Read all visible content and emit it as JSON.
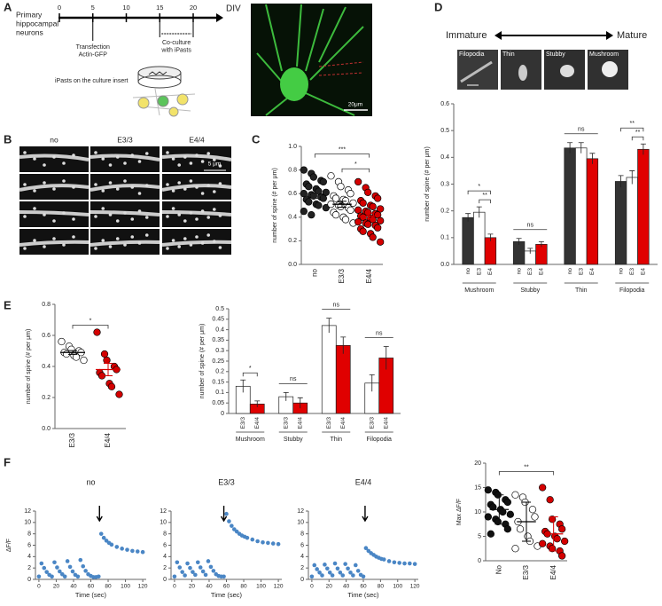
{
  "panel_labels": [
    "A",
    "B",
    "C",
    "D",
    "E",
    "F"
  ],
  "timeline": {
    "title_lines": [
      "Primary",
      "hippocampal",
      "neurons"
    ],
    "xlim": [
      0,
      20
    ],
    "xticks": [
      0,
      5,
      10,
      15,
      20
    ],
    "unit": "DIV",
    "transfection": {
      "x": 5,
      "lines": [
        "Transfection",
        "Actin-GFP"
      ]
    },
    "coculture": {
      "x": [
        15,
        20
      ],
      "lines": [
        "Co-culture",
        "with iPasts"
      ]
    },
    "insert_label": "iPasts on the culture insert"
  },
  "image_a": {
    "scale": "20μm"
  },
  "image_b": {
    "columns": [
      "no",
      "E3/3",
      "E4/4"
    ],
    "scale": "5 μm"
  },
  "maturity": {
    "start": "Immature",
    "end": "Mature",
    "thumbnails": [
      "Filopodia",
      "Thin",
      "Stubby",
      "Mushroom"
    ]
  },
  "chart_data": [
    {
      "type": "strip",
      "categories": [
        "no",
        "E3/3",
        "E4/4"
      ],
      "colors": [
        "#222222",
        "#ffffff",
        "#d40000"
      ],
      "values": [
        [
          0.8,
          0.77,
          0.74,
          0.71,
          0.7,
          0.68,
          0.66,
          0.64,
          0.62,
          0.61,
          0.6,
          0.59,
          0.58,
          0.57,
          0.56,
          0.55,
          0.53,
          0.51,
          0.5,
          0.48,
          0.45,
          0.42
        ],
        [
          0.75,
          0.7,
          0.66,
          0.63,
          0.6,
          0.58,
          0.56,
          0.55,
          0.54,
          0.52,
          0.51,
          0.5,
          0.49,
          0.48,
          0.46,
          0.44,
          0.42,
          0.4,
          0.38,
          0.35
        ],
        [
          0.7,
          0.65,
          0.61,
          0.58,
          0.56,
          0.54,
          0.52,
          0.5,
          0.49,
          0.47,
          0.46,
          0.45,
          0.44,
          0.43,
          0.42,
          0.41,
          0.4,
          0.39,
          0.38,
          0.37,
          0.36,
          0.35,
          0.34,
          0.33,
          0.31,
          0.3,
          0.28,
          0.26,
          0.23,
          0.19
        ]
      ],
      "means": [
        0.58,
        0.51,
        0.41
      ],
      "errors": [
        0.02,
        0.025,
        0.025
      ],
      "ylabel": "number of spine (# per μm)",
      "ylim": [
        0,
        1.0
      ],
      "yticks": [
        {
          "value": 0,
          "label": "0.0"
        },
        {
          "value": 0.2,
          "label": "0.2"
        },
        {
          "value": 0.4,
          "label": "0.4"
        },
        {
          "value": 0.6,
          "label": "0.6"
        },
        {
          "value": 0.8,
          "label": "0.8"
        },
        {
          "value": 1.0,
          "label": "1.0"
        }
      ],
      "annotations": [
        {
          "text": "***",
          "between": [
            "no",
            "E4/4"
          ]
        },
        {
          "text": "*",
          "between": [
            "E3/3",
            "E4/4"
          ]
        }
      ]
    },
    {
      "type": "bar",
      "categories": [
        "Mushroom",
        "Stubby",
        "Thin",
        "Filopodia"
      ],
      "series": [
        {
          "name": "no",
          "color": "#333333",
          "values": [
            0.175,
            0.085,
            0.435,
            0.31
          ],
          "errors": [
            0.015,
            0.012,
            0.02,
            0.022
          ]
        },
        {
          "name": "E3",
          "color": "#ffffff",
          "values": [
            0.195,
            0.05,
            0.435,
            0.325
          ],
          "errors": [
            0.02,
            0.01,
            0.02,
            0.025
          ]
        },
        {
          "name": "E4",
          "color": "#e00000",
          "values": [
            0.1,
            0.075,
            0.395,
            0.43
          ],
          "errors": [
            0.013,
            0.01,
            0.02,
            0.02
          ]
        }
      ],
      "ylabel": "number of spine (# per μm)",
      "ylim": [
        0,
        0.6
      ],
      "yticks": [
        {
          "value": 0,
          "label": "0.0"
        },
        {
          "value": 0.1,
          "label": "0.1"
        },
        {
          "value": 0.2,
          "label": "0.2"
        },
        {
          "value": 0.3,
          "label": "0.3"
        },
        {
          "value": 0.4,
          "label": "0.4"
        },
        {
          "value": 0.5,
          "label": "0.5"
        },
        {
          "value": 0.6,
          "label": "0.6"
        }
      ],
      "annotations": [
        {
          "text": "*",
          "category": "Mushroom",
          "between": [
            "no",
            "E4"
          ]
        },
        {
          "text": "**",
          "category": "Mushroom",
          "between": [
            "E3",
            "E4"
          ]
        },
        {
          "text": "ns",
          "category": "Stubby"
        },
        {
          "text": "ns",
          "category": "Thin"
        },
        {
          "text": "**",
          "category": "Filopodia",
          "between": [
            "no",
            "E4"
          ]
        },
        {
          "text": "**",
          "category": "Filopodia",
          "between": [
            "E3",
            "E4"
          ]
        }
      ]
    },
    {
      "type": "strip",
      "categories": [
        "E3/3",
        "E4/4"
      ],
      "colors": [
        "#ffffff",
        "#d40000"
      ],
      "values": [
        [
          0.56,
          0.53,
          0.51,
          0.5,
          0.49,
          0.49,
          0.48,
          0.47,
          0.46,
          0.44
        ],
        [
          0.62,
          0.48,
          0.44,
          0.4,
          0.38,
          0.36,
          0.34,
          0.29,
          0.27,
          0.22
        ]
      ],
      "means": [
        0.49,
        0.38
      ],
      "errors": [
        0.012,
        0.04
      ],
      "ylabel": "number of spine (# per μm)",
      "ylim": [
        0,
        0.8
      ],
      "yticks": [
        {
          "value": 0,
          "label": "0.0"
        },
        {
          "value": 0.2,
          "label": "0.2"
        },
        {
          "value": 0.4,
          "label": "0.4"
        },
        {
          "value": 0.6,
          "label": "0.6"
        },
        {
          "value": 0.8,
          "label": "0.8"
        }
      ],
      "annotations": [
        {
          "text": "*",
          "between": [
            "E3/3",
            "E4/4"
          ]
        }
      ]
    },
    {
      "type": "bar",
      "categories": [
        "Mushroom",
        "Stubby",
        "Thin",
        "Filopodia"
      ],
      "series": [
        {
          "name": "E3/3",
          "color": "#ffffff",
          "values": [
            0.13,
            0.08,
            0.42,
            0.145
          ],
          "errors": [
            0.03,
            0.02,
            0.035,
            0.04
          ]
        },
        {
          "name": "E4/4",
          "color": "#e00000",
          "values": [
            0.045,
            0.05,
            0.325,
            0.265
          ],
          "errors": [
            0.015,
            0.025,
            0.04,
            0.055
          ]
        }
      ],
      "ylabel": "number of spine (# per μm)",
      "ylim": [
        0,
        0.5
      ],
      "yticks": [
        0,
        0.05,
        0.1,
        0.15,
        0.2,
        0.25,
        0.3,
        0.35,
        0.4,
        0.45,
        0.5
      ],
      "annotations": [
        {
          "text": "*",
          "category": "Mushroom",
          "between": [
            "E3/3",
            "E4/4"
          ]
        },
        {
          "text": "ns",
          "category": "Stubby"
        },
        {
          "text": "ns",
          "category": "Thin"
        },
        {
          "text": "ns",
          "category": "Filopodia"
        }
      ]
    },
    {
      "type": "scatter",
      "title": "no",
      "ylabel": "ΔF/F",
      "xlabel": "Time (sec)",
      "color": "#4a86c5",
      "arrow_x": 70,
      "x": [
        0,
        3,
        6,
        9,
        12,
        15,
        18,
        21,
        24,
        27,
        30,
        33,
        36,
        39,
        42,
        45,
        48,
        51,
        54,
        57,
        60,
        63,
        66,
        69,
        72,
        75,
        78,
        81,
        84,
        90,
        96,
        102,
        108,
        114,
        120
      ],
      "values": [
        0.5,
        2.8,
        2.0,
        1.3,
        0.8,
        0.5,
        3.0,
        2.1,
        1.4,
        0.9,
        0.5,
        3.2,
        2.2,
        1.4,
        0.8,
        0.5,
        3.4,
        2.3,
        1.5,
        0.9,
        0.6,
        0.4,
        0.4,
        0.5,
        8.0,
        7.3,
        6.8,
        6.4,
        6.1,
        5.7,
        5.4,
        5.2,
        5.0,
        4.9,
        4.8
      ],
      "xlim": [
        -4,
        124
      ],
      "xticks": [
        0,
        20,
        40,
        60,
        80,
        100,
        120
      ],
      "ylim": [
        0,
        12
      ],
      "yticks": [
        0,
        2,
        4,
        6,
        8,
        10,
        12
      ]
    },
    {
      "type": "scatter",
      "title": "E3/3",
      "xlabel": "Time (sec)",
      "color": "#4a86c5",
      "arrow_x": 57,
      "x": [
        0,
        3,
        6,
        9,
        12,
        15,
        18,
        21,
        24,
        27,
        30,
        33,
        36,
        39,
        42,
        45,
        48,
        51,
        54,
        57,
        60,
        63,
        66,
        69,
        72,
        75,
        78,
        81,
        84,
        90,
        96,
        102,
        108,
        114,
        120
      ],
      "values": [
        0.5,
        3.0,
        2.1,
        1.3,
        0.7,
        2.8,
        2.0,
        1.3,
        0.8,
        3.0,
        2.1,
        1.4,
        0.8,
        3.2,
        2.2,
        1.5,
        0.9,
        0.6,
        0.5,
        0.5,
        11.5,
        10.2,
        9.4,
        8.8,
        8.4,
        8.0,
        7.7,
        7.5,
        7.3,
        7.0,
        6.7,
        6.5,
        6.4,
        6.3,
        6.2
      ],
      "xlim": [
        -4,
        124
      ],
      "xticks": [
        0,
        20,
        40,
        60,
        80,
        100,
        120
      ],
      "ylim": [
        0,
        12
      ],
      "yticks": [
        0,
        2,
        4,
        6,
        8,
        10,
        12
      ]
    },
    {
      "type": "scatter",
      "title": "E4/4",
      "xlabel": "Time (sec)",
      "color": "#4a86c5",
      "arrow_x": 62,
      "x": [
        0,
        3,
        6,
        9,
        12,
        15,
        18,
        21,
        24,
        27,
        30,
        33,
        36,
        39,
        42,
        45,
        48,
        51,
        54,
        57,
        60,
        63,
        66,
        69,
        72,
        75,
        78,
        81,
        84,
        90,
        96,
        102,
        108,
        114,
        120
      ],
      "values": [
        0.5,
        2.5,
        1.8,
        1.2,
        0.7,
        2.6,
        1.9,
        1.2,
        0.7,
        2.8,
        1.9,
        1.2,
        0.7,
        2.7,
        1.9,
        1.2,
        0.7,
        2.5,
        1.5,
        0.8,
        0.5,
        5.5,
        5.0,
        4.6,
        4.3,
        4.0,
        3.8,
        3.6,
        3.5,
        3.2,
        3.0,
        2.9,
        2.8,
        2.8,
        2.7
      ],
      "xlim": [
        -4,
        124
      ],
      "xticks": [
        0,
        20,
        40,
        60,
        80,
        100,
        120
      ],
      "ylim": [
        0,
        12
      ],
      "yticks": [
        0,
        2,
        4,
        6,
        8,
        10,
        12
      ]
    },
    {
      "type": "strip",
      "categories": [
        "No",
        "E3/3",
        "E4/4"
      ],
      "colors": [
        "#111111",
        "#ffffff",
        "#d40000"
      ],
      "values": [
        [
          14.5,
          14,
          13.5,
          12.5,
          12,
          11.5,
          11,
          10.5,
          10,
          9.5,
          9,
          8.5,
          8,
          7.5,
          6.5,
          5.5
        ],
        [
          13.5,
          13,
          12,
          10.5,
          9,
          8,
          6.5,
          5,
          4,
          3,
          2.5
        ],
        [
          15,
          12.5,
          8.5,
          7.5,
          6.5,
          6,
          5.5,
          5,
          4.5,
          4,
          3.5,
          3,
          2.5,
          2,
          1
        ]
      ],
      "means": [
        10.5,
        8,
        5.5
      ],
      "errors": [
        3,
        4,
        3.5
      ],
      "ylabel": "Max ΔF/F",
      "ylim": [
        0,
        20
      ],
      "yticks": [
        0,
        5,
        10,
        15,
        20
      ],
      "annotations": [
        {
          "text": "**",
          "between": [
            "No",
            "E4/4"
          ]
        }
      ]
    }
  ]
}
